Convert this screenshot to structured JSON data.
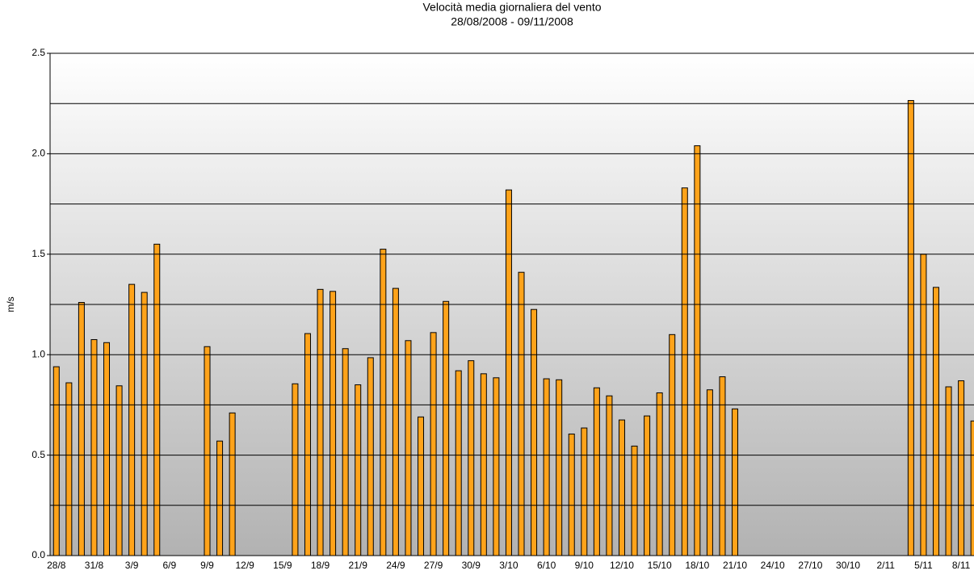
{
  "chart_data": {
    "type": "bar",
    "title": "Velocità media giornaliera del vento",
    "subtitle": "28/08/2008 - 09/11/2008",
    "y_label": "m/s",
    "color": "#ffa31a",
    "categories": [
      "28/8",
      null,
      null,
      "31/8",
      null,
      null,
      "3/9",
      null,
      null,
      "6/9",
      null,
      null,
      "9/9",
      null,
      null,
      "12/9",
      null,
      null,
      "15/9",
      null,
      null,
      "18/9",
      null,
      null,
      "21/9",
      null,
      null,
      "24/9",
      null,
      null,
      "27/9",
      null,
      null,
      "30/9",
      null,
      null,
      "3/10",
      null,
      null,
      "6/10",
      null,
      null,
      "9/10",
      null,
      null,
      "12/10",
      null,
      null,
      "15/10",
      null,
      null,
      "18/10",
      null,
      null,
      "21/10",
      null,
      null,
      "24/10",
      null,
      null,
      "27/10",
      null,
      null,
      "30/10",
      null,
      null,
      "2/11",
      null,
      null,
      "5/11",
      null,
      null,
      "8/11",
      null
    ],
    "values": [
      0.94,
      0.86,
      1.26,
      1.075,
      1.06,
      0.845,
      1.35,
      1.31,
      1.55,
      null,
      null,
      null,
      1.04,
      0.57,
      0.71,
      null,
      null,
      null,
      null,
      0.855,
      1.105,
      1.325,
      1.315,
      1.03,
      0.85,
      0.985,
      1.525,
      1.33,
      1.07,
      0.69,
      1.11,
      1.265,
      0.92,
      0.97,
      0.905,
      0.885,
      1.82,
      1.41,
      1.225,
      0.88,
      0.875,
      0.605,
      0.635,
      0.835,
      0.795,
      0.675,
      0.545,
      0.695,
      0.81,
      1.1,
      1.83,
      2.04,
      0.825,
      0.89,
      0.73,
      null,
      null,
      null,
      null,
      null,
      null,
      null,
      null,
      null,
      null,
      null,
      null,
      null,
      2.265,
      1.5,
      1.335,
      0.84,
      0.87,
      0.67
    ],
    "ylim": [
      0,
      2.5
    ],
    "yticks": [
      {
        "value": 0,
        "label": "0.0"
      },
      {
        "value": 0.5,
        "label": "0.5"
      },
      {
        "value": 1,
        "label": "1.0"
      },
      {
        "value": 1.5,
        "label": "1.5"
      },
      {
        "value": 2,
        "label": "2.0"
      },
      {
        "value": 2.5,
        "label": "2.5"
      }
    ],
    "minor_yticks": [
      0.25,
      0.75,
      1.25,
      1.75,
      2.25
    ],
    "grid": true
  }
}
